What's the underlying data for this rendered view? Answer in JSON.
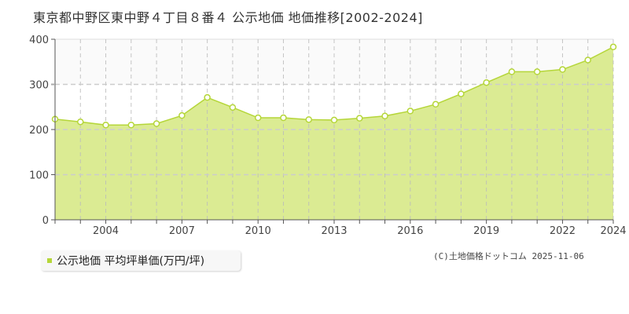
{
  "title": "東京都中野区東中野４丁目８番４ 公示地価 地価推移[2002-2024]",
  "legend": {
    "label": "公示地価 平均坪単価(万円/坪)",
    "color": "#b5d639"
  },
  "credit": "(C)土地価格ドットコム 2025-11-06",
  "colors": {
    "area_fill": "#dbeb93",
    "line": "#b5d639",
    "marker_fill": "#ffffff",
    "upper_band": "#fafafa",
    "grid": "#cccccc",
    "axis": "#555555"
  },
  "chart_data": {
    "type": "area",
    "title": "東京都中野区東中野４丁目８番４ 公示地価 地価推移[2002-2024]",
    "xlabel": "",
    "ylabel": "",
    "ylim": [
      0,
      400
    ],
    "yticks": [
      0,
      100,
      200,
      300,
      400
    ],
    "xtick_labels": [
      "2004",
      "2007",
      "2010",
      "2013",
      "2016",
      "2019",
      "2022",
      "2024"
    ],
    "grid": true,
    "legend_position": "bottom-left",
    "x": [
      2002,
      2003,
      2004,
      2005,
      2006,
      2007,
      2008,
      2009,
      2010,
      2011,
      2012,
      2013,
      2014,
      2015,
      2016,
      2017,
      2018,
      2019,
      2020,
      2021,
      2022,
      2023,
      2024
    ],
    "series": [
      {
        "name": "公示地価 平均坪単価(万円/坪)",
        "values": [
          223,
          217,
          210,
          210,
          213,
          231,
          271,
          249,
          226,
          226,
          222,
          221,
          225,
          230,
          241,
          256,
          279,
          304,
          328,
          328,
          333,
          354,
          383
        ]
      }
    ]
  }
}
